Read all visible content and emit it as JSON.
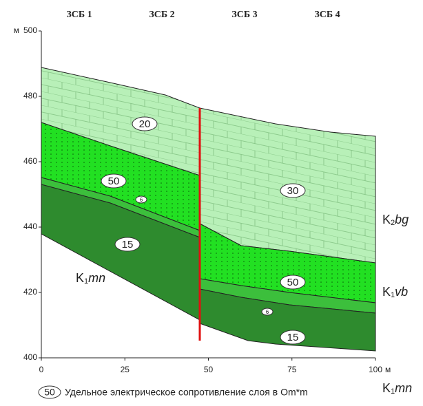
{
  "zones": [
    "ЗСБ 1",
    "ЗСБ 2",
    "ЗСБ 3",
    "ЗСБ 4"
  ],
  "y_axis": {
    "unit": "м",
    "lim": [
      400,
      500
    ],
    "ticks": [
      400,
      420,
      440,
      460,
      480,
      500
    ]
  },
  "x_axis": {
    "unit": "м",
    "lim": [
      0,
      100
    ],
    "ticks": [
      0,
      25,
      50,
      75,
      100
    ]
  },
  "resistivity_labels": [
    "20",
    "50",
    "6",
    "15",
    "30",
    "50",
    "6",
    "15"
  ],
  "formation_labels": [
    {
      "main": "K",
      "sub": "1",
      "italic": "mn"
    },
    {
      "main": "K",
      "sub": "2",
      "italic": "bg"
    },
    {
      "main": "K",
      "sub": "1",
      "italic": "vb"
    },
    {
      "main": "K",
      "sub": "1",
      "italic": "mn"
    }
  ],
  "legend": {
    "symbol": "50",
    "text": "Удельное электрическое сопротивление слоя в Om*m"
  }
}
